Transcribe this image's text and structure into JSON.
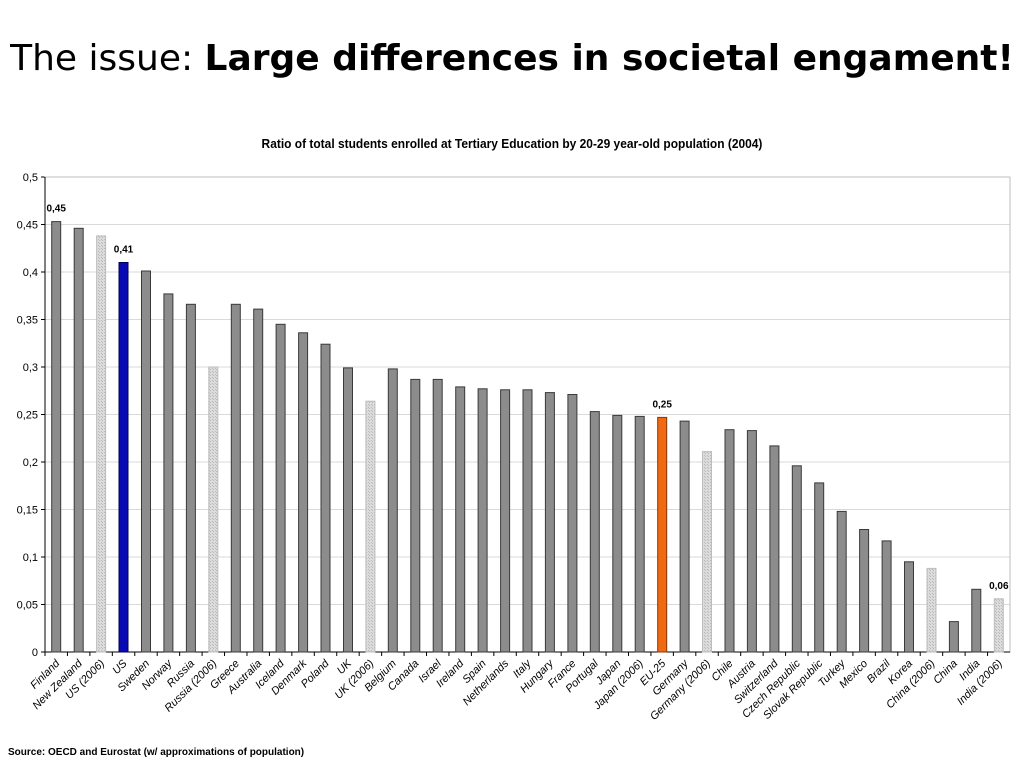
{
  "slide": {
    "title_prefix": "The issue: ",
    "title_emphasis": "Large differences in societal engament!"
  },
  "source": "Source: OECD and Eurostat (w/ approximations of population)",
  "colors": {
    "default": "#8c8c8c",
    "approximation": "#dcdcdc",
    "highlight_us": "#0a0ab4",
    "highlight_eu": "#f06a14"
  },
  "chart_data": {
    "type": "bar",
    "title": "Ratio of total students enrolled at Tertiary Education by 20-29 year-old population (2004)",
    "xlabel": "",
    "ylabel": "",
    "ylim": [
      0,
      0.5
    ],
    "yticks": [
      "0",
      "0,05",
      "0,1",
      "0,15",
      "0,2",
      "0,25",
      "0,3",
      "0,35",
      "0,4",
      "0,45",
      "0,5"
    ],
    "grid": true,
    "categories": [
      "Finland",
      "New Zealand",
      "US (2006)",
      "US",
      "Sweden",
      "Norway",
      "Russia",
      "Russia (2006)",
      "Greece",
      "Australia",
      "Iceland",
      "Denmark",
      "Poland",
      "UK",
      "UK (2006)",
      "Belgium",
      "Canada",
      "Israel",
      "Ireland",
      "Spain",
      "Netherlands",
      "Italy",
      "Hungary",
      "France",
      "Portugal",
      "Japan",
      "Japan (2006)",
      "EU-25",
      "Germany",
      "Germany (2006)",
      "Chile",
      "Austria",
      "Switzerland",
      "Czech Republic",
      "Slovak Republic",
      "Turkey",
      "Mexico",
      "Brazil",
      "Korea",
      "China (2006)",
      "China",
      "India",
      "India (2006)"
    ],
    "values": [
      0.453,
      0.446,
      0.438,
      0.41,
      0.401,
      0.377,
      0.366,
      0.3,
      0.366,
      0.361,
      0.345,
      0.336,
      0.324,
      0.299,
      0.264,
      0.298,
      0.287,
      0.287,
      0.279,
      0.277,
      0.276,
      0.276,
      0.273,
      0.271,
      0.253,
      0.249,
      0.248,
      0.247,
      0.243,
      0.211,
      0.234,
      0.233,
      0.217,
      0.196,
      0.178,
      0.148,
      0.129,
      0.117,
      0.095,
      0.088,
      0.032,
      0.066,
      0.056
    ],
    "styles": [
      "default",
      "default",
      "approximation",
      "highlight_us",
      "default",
      "default",
      "default",
      "approximation",
      "default",
      "default",
      "default",
      "default",
      "default",
      "default",
      "approximation",
      "default",
      "default",
      "default",
      "default",
      "default",
      "default",
      "default",
      "default",
      "default",
      "default",
      "default",
      "default",
      "highlight_eu",
      "default",
      "approximation",
      "default",
      "default",
      "default",
      "default",
      "default",
      "default",
      "default",
      "default",
      "default",
      "approximation",
      "default",
      "default",
      "approximation"
    ],
    "data_labels": [
      {
        "category": "Finland",
        "label": "0,45"
      },
      {
        "category": "US",
        "label": "0,41"
      },
      {
        "category": "EU-25",
        "label": "0,25"
      },
      {
        "category": "India (2006)",
        "label": "0,06"
      }
    ]
  }
}
